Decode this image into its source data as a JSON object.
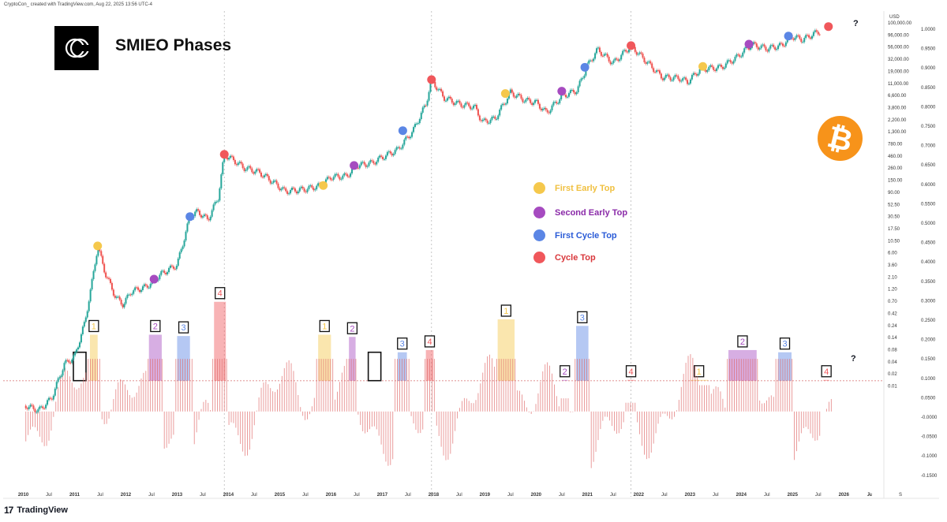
{
  "header": {
    "note": "CryptoCon_ created with TradingView.com, Aug 22, 2025 13:56 UTC-4"
  },
  "title": "SMIEO Phases",
  "brand": {
    "logo": "CC",
    "coin_icon": "bitcoin-icon",
    "coin_color": "#f7931a"
  },
  "legend": [
    {
      "label": "First Early Top",
      "color": "#f5c84c",
      "text_color": "#f0c040"
    },
    {
      "label": "Second Early Top",
      "color": "#a64bc0",
      "text_color": "#8a2aa8"
    },
    {
      "label": "First Cycle Top",
      "color": "#5b86e5",
      "text_color": "#2a5bd7"
    },
    {
      "label": "Cycle Top",
      "color": "#f0575b",
      "text_color": "#d9383c"
    }
  ],
  "footer": {
    "brand": "TradingView",
    "logo": "17"
  },
  "question_marks": [
    "?",
    "?"
  ],
  "chart_data": {
    "type": "line",
    "price_axis": {
      "unit": "USD",
      "scale": "log",
      "ticks": [
        "100,000.00",
        "96,000.00",
        "56,000.00",
        "32,000.00",
        "19,000.00",
        "11,000.00",
        "6,600.00",
        "3,800.00",
        "2,200.00",
        "1,300.00",
        "780.00",
        "460.00",
        "260.00",
        "150.00",
        "90.00",
        "52.50",
        "30.50",
        "17.50",
        "10.50",
        "6.00",
        "3.60",
        "2.10",
        "1.20",
        "0.70",
        "0.42",
        "0.24",
        "0.14",
        "0.08",
        "0.04",
        "0.02",
        "0.01"
      ]
    },
    "oscillator_axis": {
      "ticks": [
        "1.0000",
        "0.9500",
        "0.9000",
        "0.8500",
        "0.8000",
        "0.7500",
        "0.7000",
        "0.6500",
        "0.6000",
        "0.5500",
        "0.5000",
        "0.4500",
        "0.4000",
        "0.3500",
        "0.3000",
        "0.2500",
        "0.2000",
        "0.1500",
        "0.1000",
        "0.0500",
        "-0.0000",
        "-0.0500",
        "-0.1000",
        "-0.1500"
      ]
    },
    "x_axis": {
      "ticks": [
        {
          "label": "2010",
          "bold": true
        },
        {
          "label": "Jul",
          "bold": false
        },
        {
          "label": "2011",
          "bold": true
        },
        {
          "label": "Jul",
          "bold": false
        },
        {
          "label": "2012",
          "bold": true
        },
        {
          "label": "Jul",
          "bold": false
        },
        {
          "label": "2013",
          "bold": true
        },
        {
          "label": "Jul",
          "bold": false
        },
        {
          "label": "2014",
          "bold": true
        },
        {
          "label": "Jul",
          "bold": false
        },
        {
          "label": "2015",
          "bold": true
        },
        {
          "label": "Jul",
          "bold": false
        },
        {
          "label": "2016",
          "bold": true
        },
        {
          "label": "Jul",
          "bold": false
        },
        {
          "label": "2017",
          "bold": true
        },
        {
          "label": "Jul",
          "bold": false
        },
        {
          "label": "2018",
          "bold": true
        },
        {
          "label": "Jul",
          "bold": false
        },
        {
          "label": "2019",
          "bold": true
        },
        {
          "label": "Jul",
          "bold": false
        },
        {
          "label": "2020",
          "bold": true
        },
        {
          "label": "Jul",
          "bold": false
        },
        {
          "label": "2021",
          "bold": true
        },
        {
          "label": "Jul",
          "bold": false
        },
        {
          "label": "2022",
          "bold": true
        },
        {
          "label": "Jul",
          "bold": false
        },
        {
          "label": "2023",
          "bold": true
        },
        {
          "label": "Jul",
          "bold": false
        },
        {
          "label": "2024",
          "bold": true
        },
        {
          "label": "Jul",
          "bold": false
        },
        {
          "label": "2025",
          "bold": true
        },
        {
          "label": "Jul",
          "bold": false
        },
        {
          "label": "2026",
          "bold": true
        },
        {
          "label": "Ju",
          "bold": false
        },
        {
          "label": "A",
          "bold": false
        },
        {
          "label": "S",
          "bold": false
        }
      ]
    },
    "price_series": {
      "name": "BTC",
      "points": [
        [
          2010.05,
          0.06
        ],
        [
          2010.3,
          0.05
        ],
        [
          2010.55,
          0.08
        ],
        [
          2010.8,
          0.3
        ],
        [
          2011.0,
          0.4
        ],
        [
          2011.2,
          1.5
        ],
        [
          2011.35,
          8
        ],
        [
          2011.45,
          29
        ],
        [
          2011.6,
          10
        ],
        [
          2011.8,
          4
        ],
        [
          2011.95,
          3
        ],
        [
          2012.1,
          5
        ],
        [
          2012.4,
          6
        ],
        [
          2012.7,
          10
        ],
        [
          2013.0,
          14
        ],
        [
          2013.25,
          90
        ],
        [
          2013.4,
          110
        ],
        [
          2013.6,
          80
        ],
        [
          2013.8,
          190
        ],
        [
          2013.92,
          1000
        ],
        [
          2014.1,
          800
        ],
        [
          2014.3,
          600
        ],
        [
          2014.6,
          500
        ],
        [
          2014.9,
          330
        ],
        [
          2015.1,
          240
        ],
        [
          2015.5,
          260
        ],
        [
          2015.8,
          300
        ],
        [
          2016.0,
          420
        ],
        [
          2016.3,
          430
        ],
        [
          2016.5,
          650
        ],
        [
          2016.8,
          720
        ],
        [
          2017.0,
          900
        ],
        [
          2017.3,
          1200
        ],
        [
          2017.6,
          2500
        ],
        [
          2017.85,
          7000
        ],
        [
          2017.96,
          18000
        ],
        [
          2018.2,
          9000
        ],
        [
          2018.5,
          7000
        ],
        [
          2018.8,
          6300
        ],
        [
          2018.95,
          3500
        ],
        [
          2019.2,
          4000
        ],
        [
          2019.5,
          11000
        ],
        [
          2019.8,
          8000
        ],
        [
          2020.0,
          7500
        ],
        [
          2020.2,
          5000
        ],
        [
          2020.5,
          9500
        ],
        [
          2020.8,
          12000
        ],
        [
          2020.98,
          29000
        ],
        [
          2021.2,
          58000
        ],
        [
          2021.5,
          34000
        ],
        [
          2021.85,
          67000
        ],
        [
          2022.1,
          40000
        ],
        [
          2022.45,
          20000
        ],
        [
          2022.8,
          19000
        ],
        [
          2022.95,
          16500
        ],
        [
          2023.2,
          27000
        ],
        [
          2023.6,
          29000
        ],
        [
          2023.9,
          42000
        ],
        [
          2024.2,
          70000
        ],
        [
          2024.5,
          60000
        ],
        [
          2024.8,
          68000
        ],
        [
          2024.95,
          98000
        ],
        [
          2025.2,
          85000
        ],
        [
          2025.4,
          105000
        ],
        [
          2025.55,
          118000
        ]
      ]
    },
    "phase_markers": [
      {
        "phase": "First Early Top",
        "x": 2011.45,
        "y": 29
      },
      {
        "phase": "Second Early Top",
        "x": 2012.55,
        "y": 8
      },
      {
        "phase": "First Cycle Top",
        "x": 2013.25,
        "y": 90
      },
      {
        "phase": "Cycle Top",
        "x": 2013.92,
        "y": 1000
      },
      {
        "phase": "First Early Top",
        "x": 2015.85,
        "y": 300
      },
      {
        "phase": "Second Early Top",
        "x": 2016.45,
        "y": 650
      },
      {
        "phase": "First Cycle Top",
        "x": 2017.4,
        "y": 2500
      },
      {
        "phase": "Cycle Top",
        "x": 2017.96,
        "y": 18000
      },
      {
        "phase": "First Early Top",
        "x": 2019.4,
        "y": 10500
      },
      {
        "phase": "Second Early Top",
        "x": 2020.5,
        "y": 11500
      },
      {
        "phase": "First Cycle Top",
        "x": 2020.95,
        "y": 29000
      },
      {
        "phase": "Cycle Top",
        "x": 2021.85,
        "y": 67000
      },
      {
        "phase": "First Early Top",
        "x": 2023.25,
        "y": 30000
      },
      {
        "phase": "Second Early Top",
        "x": 2024.15,
        "y": 71000
      },
      {
        "phase": "First Cycle Top",
        "x": 2024.92,
        "y": 97000
      },
      {
        "phase": "Cycle Top",
        "x": 2025.7,
        "y": 140000
      }
    ],
    "phase_zones": [
      {
        "label": "1",
        "phase": "First Early Top",
        "x0": 2011.3,
        "x1": 2011.45,
        "top": 0.175
      },
      {
        "label": "2",
        "phase": "Second Early Top",
        "x0": 2012.45,
        "x1": 2012.7,
        "top": 0.175
      },
      {
        "label": "3",
        "phase": "First Cycle Top",
        "x0": 2013.0,
        "x1": 2013.25,
        "top": 0.172
      },
      {
        "label": "4",
        "phase": "Cycle Top",
        "x0": 2013.72,
        "x1": 2013.95,
        "top": 0.25
      },
      {
        "label": "1",
        "phase": "First Early Top",
        "x0": 2015.75,
        "x1": 2016.0,
        "top": 0.175
      },
      {
        "label": "2",
        "phase": "Second Early Top",
        "x0": 2016.35,
        "x1": 2016.48,
        "top": 0.17
      },
      {
        "label": "3",
        "phase": "First Cycle Top",
        "x0": 2017.3,
        "x1": 2017.48,
        "top": 0.135
      },
      {
        "label": "4",
        "phase": "Cycle Top",
        "x0": 2017.85,
        "x1": 2018.0,
        "top": 0.14
      },
      {
        "label": "1",
        "phase": "First Early Top",
        "x0": 2019.25,
        "x1": 2019.58,
        "top": 0.21
      },
      {
        "label": "2",
        "phase": "Second Early Top",
        "x0": 2020.5,
        "x1": 2020.62,
        "top": 0.03
      },
      {
        "label": "3",
        "phase": "First Cycle Top",
        "x0": 2020.78,
        "x1": 2021.02,
        "top": 0.195
      },
      {
        "label": "4",
        "phase": "Cycle Top",
        "x0": 2021.78,
        "x1": 2021.92,
        "top": 0.02
      },
      {
        "label": "1",
        "phase": "First Early Top",
        "x0": 2023.0,
        "x1": 2023.35,
        "top": 0.06
      },
      {
        "label": "2",
        "phase": "Second Early Top",
        "x0": 2023.75,
        "x1": 2024.3,
        "top": 0.14
      },
      {
        "label": "3",
        "phase": "First Cycle Top",
        "x0": 2024.72,
        "x1": 2024.98,
        "top": 0.135
      },
      {
        "label": "4",
        "phase": "Cycle Top",
        "x0": 2025.6,
        "x1": 2025.72,
        "top": 0.0
      }
    ],
    "empty_boxes": [
      2011.1,
      2016.85
    ],
    "vertical_markers": [
      2013.92,
      2017.96,
      2021.85
    ],
    "zero_reference": 0.0,
    "dotted_level": 0.07,
    "xlim": [
      2009.7,
      2026.75
    ],
    "ylim_price": [
      0.006,
      200000
    ],
    "ylim_osc": [
      -0.18,
      0.21
    ]
  }
}
